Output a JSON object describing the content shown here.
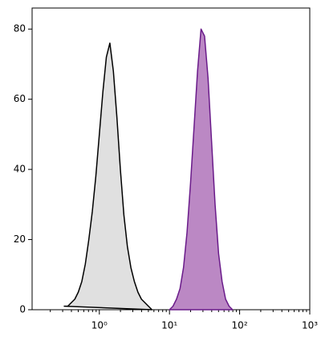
{
  "chart_data": {
    "type": "histogram-overlay",
    "xscale": "log",
    "xlim": [
      0.11,
      1000
    ],
    "ylim": [
      0,
      86
    ],
    "xticks": [
      {
        "value": 1,
        "label": "10⁰"
      },
      {
        "value": 10,
        "label": "10¹"
      },
      {
        "value": 100,
        "label": "10²"
      },
      {
        "value": 1000,
        "label": "10³"
      }
    ],
    "yticks": [
      0,
      20,
      40,
      60,
      80
    ],
    "series": [
      {
        "color": "#000000",
        "fill": "#e0e0e0",
        "x": [
          0.316,
          0.355,
          0.398,
          0.447,
          0.501,
          0.562,
          0.631,
          0.708,
          0.794,
          0.891,
          1,
          1.122,
          1.259,
          1.413,
          1.585,
          1.778,
          1.995,
          2.239,
          2.512,
          2.818,
          3.162,
          3.548,
          3.981,
          4.467,
          5.012,
          5.623
        ],
        "values": [
          1,
          1,
          2,
          3,
          5,
          8,
          13,
          20,
          28,
          38,
          50,
          62,
          72,
          76,
          68,
          55,
          40,
          27,
          18,
          12,
          8,
          5,
          3,
          2,
          1,
          0
        ]
      },
      {
        "color": "#6a1b8a",
        "fill": "#bb88c4",
        "x": [
          10,
          11.22,
          12.59,
          14.13,
          15.85,
          17.78,
          19.95,
          22.39,
          25.12,
          28.18,
          31.62,
          35.48,
          39.81,
          44.67,
          50.12,
          56.23,
          63.1,
          70.79,
          79.43
        ],
        "values": [
          0,
          1,
          3,
          6,
          12,
          22,
          36,
          52,
          68,
          80,
          78,
          66,
          48,
          30,
          16,
          8,
          3,
          1,
          0
        ]
      }
    ]
  }
}
